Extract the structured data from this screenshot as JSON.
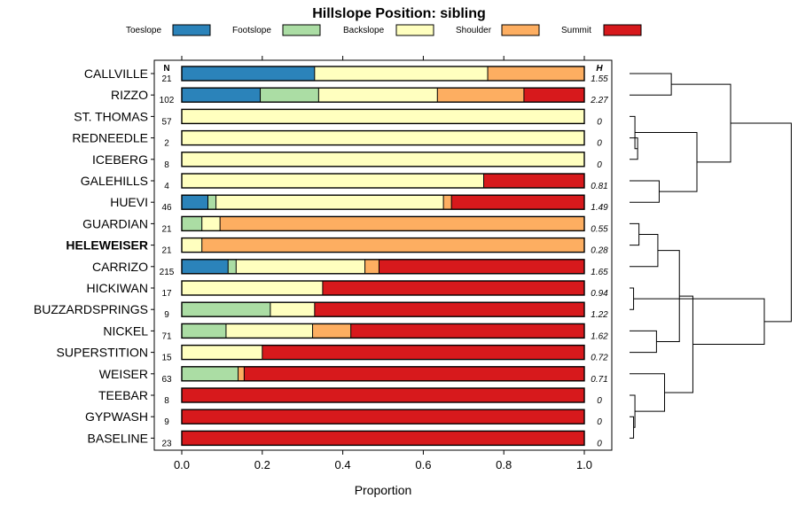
{
  "chart_data": {
    "type": "bar",
    "orientation": "horizontal",
    "stacked": true,
    "title": "Hillslope Position: sibling",
    "xlabel": "Proportion",
    "ylabel": "",
    "xlim": [
      0,
      1
    ],
    "x_ticks": [
      "0.0",
      "0.2",
      "0.4",
      "0.6",
      "0.8",
      "1.0"
    ],
    "n_header": "N",
    "h_header": "H",
    "highlighted": "HELEWEISER",
    "legend_position": "top",
    "legend": [
      {
        "name": "Toeslope",
        "color": "#2b83ba"
      },
      {
        "name": "Footslope",
        "color": "#abdda4"
      },
      {
        "name": "Backslope",
        "color": "#ffffbf"
      },
      {
        "name": "Shoulder",
        "color": "#fdae61"
      },
      {
        "name": "Summit",
        "color": "#d7191c"
      }
    ],
    "categories": [
      "CALLVILLE",
      "RIZZO",
      "ST. THOMAS",
      "REDNEEDLE",
      "ICEBERG",
      "GALEHILLS",
      "HUEVI",
      "GUARDIAN",
      "HELEWEISER",
      "CARRIZO",
      "HICKIWAN",
      "BUZZARDSPRINGS",
      "NICKEL",
      "SUPERSTITION",
      "WEISER",
      "TEEBAR",
      "GYPWASH",
      "BASELINE"
    ],
    "n": [
      "21",
      "102",
      "57",
      "2",
      "8",
      "4",
      "46",
      "21",
      "21",
      "215",
      "17",
      "9",
      "71",
      "15",
      "63",
      "8",
      "9",
      "23"
    ],
    "h": [
      "1.55",
      "2.27",
      "0",
      "0",
      "0",
      "0.81",
      "1.49",
      "0.55",
      "0.28",
      "1.65",
      "0.94",
      "1.22",
      "1.62",
      "0.72",
      "0.71",
      "0",
      "0",
      "0"
    ],
    "series": [
      {
        "name": "Toeslope",
        "values": [
          0.33,
          0.195,
          0,
          0,
          0,
          0,
          0.065,
          0,
          0,
          0.115,
          0,
          0,
          0,
          0,
          0,
          0,
          0,
          0
        ]
      },
      {
        "name": "Footslope",
        "values": [
          0,
          0.145,
          0,
          0,
          0,
          0,
          0.02,
          0.05,
          0,
          0.02,
          0,
          0.22,
          0.11,
          0,
          0.14,
          0,
          0,
          0
        ]
      },
      {
        "name": "Backslope",
        "values": [
          0.43,
          0.295,
          1.0,
          1.0,
          1.0,
          0.75,
          0.565,
          0.045,
          0.05,
          0.32,
          0.35,
          0.11,
          0.215,
          0.2,
          0,
          0,
          0,
          0
        ]
      },
      {
        "name": "Shoulder",
        "values": [
          0.24,
          0.215,
          0,
          0,
          0,
          0,
          0.02,
          0.905,
          0.95,
          0.035,
          0,
          0,
          0.095,
          0,
          0.015,
          0,
          0,
          0
        ]
      },
      {
        "name": "Summit",
        "values": [
          0,
          0.15,
          0,
          0,
          0,
          0.25,
          0.33,
          0,
          0,
          0.51,
          0.65,
          0.67,
          0.58,
          0.8,
          0.845,
          1.0,
          1.0,
          1.0
        ]
      }
    ],
    "dendrogram": {
      "leaves": [
        "CALLVILLE",
        "RIZZO",
        "ST. THOMAS",
        "REDNEEDLE",
        "ICEBERG",
        "GALEHILLS",
        "HUEVI",
        "GUARDIAN",
        "HELEWEISER",
        "CARRIZO",
        "HICKIWAN",
        "BUZZARDSPRINGS",
        "NICKEL",
        "SUPERSTITION",
        "WEISER",
        "TEEBAR",
        "GYPWASH",
        "BASELINE"
      ],
      "merges": [
        {
          "a": "L0",
          "b": "L1",
          "h": 0.31
        },
        {
          "a": "L3",
          "b": "L4",
          "h": 0.06
        },
        {
          "a": "L2",
          "b": "M1",
          "h": 0.04
        },
        {
          "a": "L5",
          "b": "L6",
          "h": 0.22
        },
        {
          "a": "M2",
          "b": "M3",
          "h": 0.5
        },
        {
          "a": "M0",
          "b": "M4",
          "h": 0.75
        },
        {
          "a": "L7",
          "b": "L8",
          "h": 0.07
        },
        {
          "a": "L10",
          "b": "L11",
          "h": 0.03
        },
        {
          "a": "L9",
          "b": "M6",
          "h": 0.21
        },
        {
          "a": "L12",
          "b": "L13",
          "h": 0.2
        },
        {
          "a": "M8",
          "b": "M9",
          "h": 0.37
        },
        {
          "a": "L16",
          "b": "L17",
          "h": 0.03
        },
        {
          "a": "L15",
          "b": "M11",
          "h": 0.04
        },
        {
          "a": "L14",
          "b": "M12",
          "h": 0.26
        },
        {
          "a": "M10",
          "b": "M13",
          "h": 0.47
        },
        {
          "a": "M7",
          "b": "M14",
          "h": 1.0
        },
        {
          "a": "M5",
          "b": "M15",
          "h": 1.2
        }
      ]
    }
  }
}
